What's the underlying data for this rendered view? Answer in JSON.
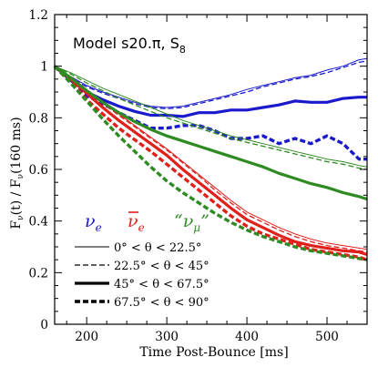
{
  "chart_data": {
    "type": "line",
    "title": "Model s20.π, S",
    "title_sub": "8",
    "xlabel": "Time Post-Bounce [ms]",
    "ylabel": "F_ν(t) / F_ν(160 ms)",
    "xlim": [
      160,
      550
    ],
    "ylim": [
      0,
      1.2
    ],
    "xticks": [
      200,
      300,
      400,
      500
    ],
    "xtick_labels": [
      "200",
      "300",
      "400",
      "500"
    ],
    "yticks": [
      0,
      0.2,
      0.4,
      0.6,
      0.8,
      1.0,
      1.2
    ],
    "ytick_labels": [
      "0",
      "0.2",
      "0.4",
      "0.6",
      "0.8",
      "1",
      "1.2"
    ],
    "grid": false,
    "flavors": [
      {
        "key": "nue",
        "label": "ν",
        "sub": "e",
        "color": "#1a1acc"
      },
      {
        "key": "nuebar",
        "label": "ν",
        "sub": "e",
        "bar": true,
        "color": "#e0201a"
      },
      {
        "key": "numu",
        "label": "“ν",
        "sub": "μ",
        "suffix": "”",
        "color": "#2e8b22"
      }
    ],
    "angle_legend": [
      {
        "text": "0° < θ < 22.5°",
        "style": "thin"
      },
      {
        "text": "22.5° < θ < 45°",
        "style": "dashed"
      },
      {
        "text": "45° < θ < 67.5°",
        "style": "thick"
      },
      {
        "text": "67.5° < θ < 90°",
        "style": "thickdashed"
      }
    ],
    "series": [
      {
        "flavor": "nue",
        "style": "thin",
        "x": [
          160,
          180,
          200,
          220,
          240,
          260,
          280,
          300,
          320,
          340,
          360,
          380,
          400,
          420,
          440,
          460,
          480,
          500,
          520,
          540,
          550
        ],
        "y": [
          1.0,
          0.96,
          0.925,
          0.9,
          0.88,
          0.86,
          0.845,
          0.84,
          0.845,
          0.86,
          0.875,
          0.89,
          0.91,
          0.925,
          0.94,
          0.955,
          0.965,
          0.985,
          1.0,
          1.025,
          1.03
        ]
      },
      {
        "flavor": "nue",
        "style": "dashed",
        "x": [
          160,
          180,
          200,
          220,
          240,
          260,
          280,
          300,
          320,
          340,
          360,
          380,
          400,
          420,
          440,
          460,
          480,
          500,
          520,
          540,
          550
        ],
        "y": [
          1.0,
          0.955,
          0.92,
          0.895,
          0.875,
          0.855,
          0.84,
          0.835,
          0.84,
          0.855,
          0.87,
          0.885,
          0.9,
          0.92,
          0.935,
          0.95,
          0.96,
          0.975,
          0.995,
          1.015,
          1.02
        ]
      },
      {
        "flavor": "nue",
        "style": "thick",
        "x": [
          160,
          180,
          200,
          220,
          240,
          260,
          280,
          300,
          320,
          340,
          360,
          380,
          400,
          420,
          440,
          460,
          480,
          500,
          520,
          540,
          550
        ],
        "y": [
          1.0,
          0.945,
          0.9,
          0.87,
          0.845,
          0.825,
          0.81,
          0.81,
          0.805,
          0.82,
          0.82,
          0.83,
          0.83,
          0.84,
          0.85,
          0.865,
          0.86,
          0.86,
          0.875,
          0.88,
          0.88
        ]
      },
      {
        "flavor": "nue",
        "style": "thickdashed",
        "x": [
          160,
          180,
          200,
          220,
          240,
          260,
          280,
          300,
          320,
          340,
          360,
          380,
          400,
          420,
          440,
          460,
          480,
          500,
          520,
          540,
          550
        ],
        "y": [
          1.0,
          0.94,
          0.885,
          0.855,
          0.82,
          0.79,
          0.76,
          0.76,
          0.77,
          0.77,
          0.75,
          0.72,
          0.72,
          0.73,
          0.7,
          0.72,
          0.7,
          0.73,
          0.7,
          0.64,
          0.64
        ]
      },
      {
        "flavor": "nuebar",
        "style": "thin",
        "x": [
          160,
          180,
          200,
          220,
          240,
          260,
          280,
          300,
          320,
          340,
          360,
          380,
          400,
          420,
          440,
          460,
          480,
          500,
          520,
          540,
          550
        ],
        "y": [
          1.0,
          0.96,
          0.91,
          0.86,
          0.815,
          0.77,
          0.725,
          0.68,
          0.63,
          0.58,
          0.53,
          0.48,
          0.435,
          0.405,
          0.375,
          0.35,
          0.33,
          0.315,
          0.305,
          0.295,
          0.29
        ]
      },
      {
        "flavor": "nuebar",
        "style": "dashed",
        "x": [
          160,
          180,
          200,
          220,
          240,
          260,
          280,
          300,
          320,
          340,
          360,
          380,
          400,
          420,
          440,
          460,
          480,
          500,
          520,
          540,
          550
        ],
        "y": [
          1.0,
          0.955,
          0.905,
          0.855,
          0.81,
          0.765,
          0.72,
          0.675,
          0.625,
          0.575,
          0.52,
          0.47,
          0.425,
          0.395,
          0.365,
          0.34,
          0.32,
          0.305,
          0.295,
          0.285,
          0.28
        ]
      },
      {
        "flavor": "nuebar",
        "style": "thick",
        "x": [
          160,
          180,
          200,
          220,
          240,
          260,
          280,
          300,
          320,
          340,
          360,
          380,
          400,
          420,
          440,
          460,
          480,
          500,
          520,
          540,
          550
        ],
        "y": [
          1.0,
          0.95,
          0.895,
          0.84,
          0.79,
          0.745,
          0.7,
          0.655,
          0.6,
          0.55,
          0.5,
          0.45,
          0.405,
          0.375,
          0.345,
          0.32,
          0.305,
          0.295,
          0.285,
          0.28,
          0.27
        ]
      },
      {
        "flavor": "nuebar",
        "style": "thickdashed",
        "x": [
          160,
          180,
          200,
          220,
          240,
          260,
          280,
          300,
          320,
          340,
          360,
          380,
          400,
          420,
          440,
          460,
          480,
          500,
          520,
          540,
          550
        ],
        "y": [
          1.0,
          0.94,
          0.87,
          0.815,
          0.76,
          0.715,
          0.67,
          0.62,
          0.57,
          0.52,
          0.47,
          0.42,
          0.38,
          0.35,
          0.33,
          0.31,
          0.29,
          0.28,
          0.27,
          0.26,
          0.25
        ]
      },
      {
        "flavor": "numu",
        "style": "thin",
        "x": [
          160,
          180,
          200,
          220,
          240,
          260,
          280,
          300,
          320,
          340,
          360,
          380,
          400,
          420,
          440,
          460,
          480,
          500,
          520,
          540,
          550
        ],
        "y": [
          1.0,
          0.975,
          0.945,
          0.915,
          0.89,
          0.865,
          0.84,
          0.815,
          0.79,
          0.77,
          0.75,
          0.73,
          0.715,
          0.7,
          0.685,
          0.67,
          0.655,
          0.64,
          0.63,
          0.615,
          0.61
        ]
      },
      {
        "flavor": "numu",
        "style": "dashed",
        "x": [
          160,
          180,
          200,
          220,
          240,
          260,
          280,
          300,
          320,
          340,
          360,
          380,
          400,
          420,
          440,
          460,
          480,
          500,
          520,
          540,
          550
        ],
        "y": [
          1.0,
          0.97,
          0.935,
          0.905,
          0.875,
          0.85,
          0.825,
          0.8,
          0.78,
          0.76,
          0.74,
          0.72,
          0.705,
          0.69,
          0.675,
          0.66,
          0.645,
          0.63,
          0.62,
          0.605,
          0.6
        ]
      },
      {
        "flavor": "numu",
        "style": "thick",
        "x": [
          160,
          180,
          200,
          220,
          240,
          260,
          280,
          300,
          320,
          340,
          360,
          380,
          400,
          420,
          440,
          460,
          480,
          500,
          520,
          540,
          550
        ],
        "y": [
          1.0,
          0.955,
          0.905,
          0.86,
          0.82,
          0.785,
          0.755,
          0.73,
          0.71,
          0.69,
          0.67,
          0.65,
          0.63,
          0.61,
          0.585,
          0.565,
          0.545,
          0.53,
          0.51,
          0.495,
          0.485
        ]
      },
      {
        "flavor": "numu",
        "style": "thickdashed",
        "x": [
          160,
          180,
          200,
          220,
          240,
          260,
          280,
          300,
          320,
          340,
          360,
          380,
          400,
          420,
          440,
          460,
          480,
          500,
          520,
          540,
          550
        ],
        "y": [
          1.0,
          0.935,
          0.865,
          0.795,
          0.73,
          0.67,
          0.61,
          0.555,
          0.51,
          0.47,
          0.43,
          0.395,
          0.365,
          0.34,
          0.32,
          0.3,
          0.285,
          0.275,
          0.265,
          0.255,
          0.25
        ]
      }
    ]
  }
}
